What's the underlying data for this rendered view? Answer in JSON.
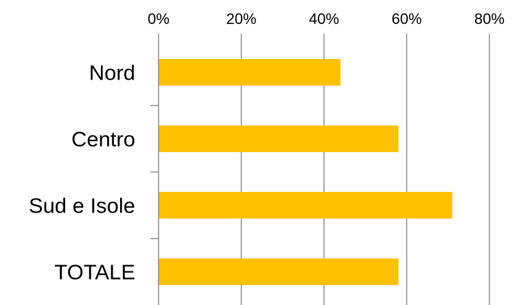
{
  "chart_data": {
    "type": "bar",
    "orientation": "horizontal",
    "categories": [
      "Nord",
      "Centro",
      "Sud e Isole",
      "TOTALE"
    ],
    "values": [
      44,
      58,
      71,
      58
    ],
    "value_unit": "%",
    "xlim": [
      0,
      80
    ],
    "x_ticks": [
      "0%",
      "20%",
      "40%",
      "60%",
      "80%"
    ],
    "x_axis_position": "top",
    "grid": "vertical",
    "legend": "none",
    "bar_color": "#FFC000",
    "grid_color": "#8C8C8C"
  }
}
